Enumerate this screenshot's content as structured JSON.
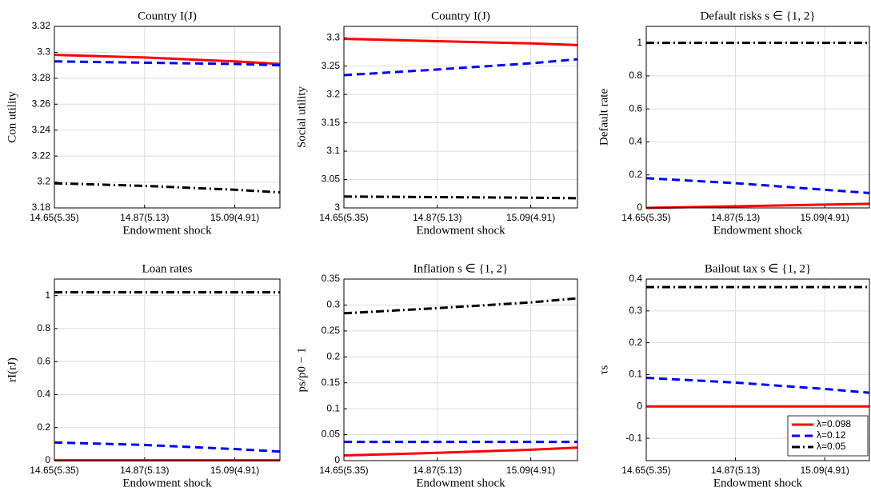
{
  "chart_data": [
    {
      "type": "line",
      "title": "Country I(J)",
      "xlabel": "Endowment shock",
      "ylabel": "Con utility",
      "x": [
        14.65,
        14.87,
        15.09,
        15.2
      ],
      "series": [
        {
          "color": "#ff0000",
          "style": "solid",
          "values": [
            3.298,
            3.296,
            3.293,
            3.291
          ]
        },
        {
          "color": "#0000ff",
          "style": "dashed",
          "values": [
            3.293,
            3.292,
            3.291,
            3.29
          ]
        },
        {
          "color": "#000000",
          "style": "dashdot",
          "values": [
            3.199,
            3.197,
            3.194,
            3.192
          ]
        }
      ],
      "xlim": [
        14.65,
        15.2
      ],
      "xticks": [
        {
          "value": 14.65,
          "label": "14.65(5.35)"
        },
        {
          "value": 14.87,
          "label": "14.87(5.13)"
        },
        {
          "value": 15.09,
          "label": "15.09(4.91)"
        }
      ],
      "ylim": [
        3.18,
        3.32
      ],
      "yticks": [
        3.18,
        3.2,
        3.22,
        3.24,
        3.26,
        3.28,
        3.3,
        3.32
      ],
      "grid": true
    },
    {
      "type": "line",
      "title": "Country I(J)",
      "xlabel": "Endowment shock",
      "ylabel": "Social utility",
      "x": [
        14.65,
        14.87,
        15.09,
        15.2
      ],
      "series": [
        {
          "color": "#ff0000",
          "style": "solid",
          "values": [
            3.298,
            3.294,
            3.29,
            3.287
          ]
        },
        {
          "color": "#0000ff",
          "style": "dashed",
          "values": [
            3.234,
            3.244,
            3.255,
            3.262
          ]
        },
        {
          "color": "#000000",
          "style": "dashdot",
          "values": [
            3.02,
            3.019,
            3.018,
            3.017
          ]
        }
      ],
      "xlim": [
        14.65,
        15.2
      ],
      "xticks": [
        {
          "value": 14.65,
          "label": "14.65(5.35)"
        },
        {
          "value": 14.87,
          "label": "14.87(5.13)"
        },
        {
          "value": 15.09,
          "label": "15.09(4.91)"
        }
      ],
      "ylim": [
        3,
        3.32
      ],
      "yticks": [
        3,
        3.05,
        3.1,
        3.15,
        3.2,
        3.25,
        3.3
      ],
      "grid": true
    },
    {
      "type": "line",
      "title": "Default risks s ∈ {1, 2}",
      "xlabel": "Endowment shock",
      "ylabel": "Default rate",
      "x": [
        14.65,
        14.87,
        15.09,
        15.2
      ],
      "series": [
        {
          "color": "#ff0000",
          "style": "solid",
          "values": [
            0,
            0.01,
            0.02,
            0.025
          ]
        },
        {
          "color": "#0000ff",
          "style": "dashed",
          "values": [
            0.18,
            0.15,
            0.11,
            0.09
          ]
        },
        {
          "color": "#000000",
          "style": "dashdot",
          "values": [
            1,
            1,
            1,
            1
          ]
        }
      ],
      "xlim": [
        14.65,
        15.2
      ],
      "xticks": [
        {
          "value": 14.65,
          "label": "14.65(5.35)"
        },
        {
          "value": 14.87,
          "label": "14.87(5.13)"
        },
        {
          "value": 15.09,
          "label": "15.09(4.91)"
        }
      ],
      "ylim": [
        0,
        1.1
      ],
      "yticks": [
        0,
        0.2,
        0.4,
        0.6,
        0.8,
        1
      ],
      "grid": true
    },
    {
      "type": "line",
      "title": "Loan rates",
      "xlabel": "Endowment shock",
      "ylabel": "rI(rJ)",
      "x": [
        14.65,
        14.87,
        15.09,
        15.2
      ],
      "series": [
        {
          "color": "#ff0000",
          "style": "solid",
          "values": [
            0.002,
            0.002,
            0.002,
            0.002
          ]
        },
        {
          "color": "#0000ff",
          "style": "dashed",
          "values": [
            0.11,
            0.095,
            0.07,
            0.055
          ]
        },
        {
          "color": "#000000",
          "style": "dashdot",
          "values": [
            1.02,
            1.02,
            1.02,
            1.02
          ]
        }
      ],
      "xlim": [
        14.65,
        15.2
      ],
      "xticks": [
        {
          "value": 14.65,
          "label": "14.65(5.35)"
        },
        {
          "value": 14.87,
          "label": "14.87(5.13)"
        },
        {
          "value": 15.09,
          "label": "15.09(4.91)"
        }
      ],
      "ylim": [
        0,
        1.1
      ],
      "yticks": [
        0,
        0.2,
        0.4,
        0.6,
        0.8,
        1
      ],
      "grid": true
    },
    {
      "type": "line",
      "title": "Inflation s ∈ {1, 2}",
      "xlabel": "Endowment shock",
      "ylabel": "ps/p0 − 1",
      "x": [
        14.65,
        14.87,
        15.09,
        15.2
      ],
      "series": [
        {
          "color": "#ff0000",
          "style": "solid",
          "values": [
            0.01,
            0.015,
            0.021,
            0.025
          ]
        },
        {
          "color": "#0000ff",
          "style": "dashed",
          "values": [
            0.036,
            0.036,
            0.036,
            0.036
          ]
        },
        {
          "color": "#000000",
          "style": "dashdot",
          "values": [
            0.284,
            0.294,
            0.305,
            0.313
          ]
        }
      ],
      "xlim": [
        14.65,
        15.2
      ],
      "xticks": [
        {
          "value": 14.65,
          "label": "14.65(5.35)"
        },
        {
          "value": 14.87,
          "label": "14.87(5.13)"
        },
        {
          "value": 15.09,
          "label": "15.09(4.91)"
        }
      ],
      "ylim": [
        0,
        0.35
      ],
      "yticks": [
        0,
        0.05,
        0.1,
        0.15,
        0.2,
        0.25,
        0.3,
        0.35
      ],
      "grid": true
    },
    {
      "type": "line",
      "title": "Bailout tax s ∈ {1, 2}",
      "xlabel": "Endowment shock",
      "ylabel": "τs",
      "x": [
        14.65,
        14.87,
        15.09,
        15.2
      ],
      "series": [
        {
          "name": "λ=0.098",
          "color": "#ff0000",
          "style": "solid",
          "values": [
            0,
            0,
            0,
            0
          ]
        },
        {
          "name": "λ=0.12",
          "color": "#0000ff",
          "style": "dashed",
          "values": [
            0.09,
            0.075,
            0.055,
            0.043
          ]
        },
        {
          "name": "λ=0.05",
          "color": "#000000",
          "style": "dashdot",
          "values": [
            0.375,
            0.375,
            0.375,
            0.375
          ]
        }
      ],
      "xlim": [
        14.65,
        15.2
      ],
      "xticks": [
        {
          "value": 14.65,
          "label": "14.65(5.35)"
        },
        {
          "value": 14.87,
          "label": "14.87(5.13)"
        },
        {
          "value": 15.09,
          "label": "15.09(4.91)"
        }
      ],
      "ylim": [
        -0.17,
        0.4
      ],
      "yticks": [
        -0.1,
        0,
        0.1,
        0.2,
        0.3,
        0.4
      ],
      "grid": true,
      "legend": "lower right"
    }
  ]
}
